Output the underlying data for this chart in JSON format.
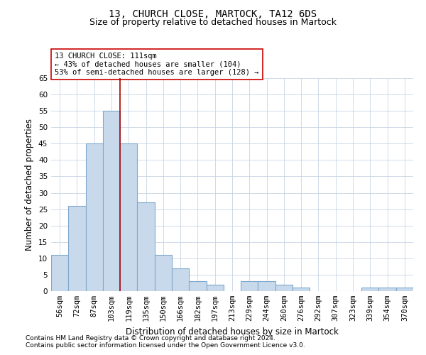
{
  "title1": "13, CHURCH CLOSE, MARTOCK, TA12 6DS",
  "title2": "Size of property relative to detached houses in Martock",
  "xlabel": "Distribution of detached houses by size in Martock",
  "ylabel": "Number of detached properties",
  "categories": [
    "56sqm",
    "72sqm",
    "87sqm",
    "103sqm",
    "119sqm",
    "135sqm",
    "150sqm",
    "166sqm",
    "182sqm",
    "197sqm",
    "213sqm",
    "229sqm",
    "244sqm",
    "260sqm",
    "276sqm",
    "292sqm",
    "307sqm",
    "323sqm",
    "339sqm",
    "354sqm",
    "370sqm"
  ],
  "values": [
    11,
    26,
    45,
    55,
    45,
    27,
    11,
    7,
    3,
    2,
    0,
    3,
    3,
    2,
    1,
    0,
    0,
    0,
    1,
    1,
    1
  ],
  "bar_color": "#c9d9ec",
  "bar_edge_color": "#7fa8cc",
  "ylim": [
    0,
    65
  ],
  "yticks": [
    0,
    5,
    10,
    15,
    20,
    25,
    30,
    35,
    40,
    45,
    50,
    55,
    60,
    65
  ],
  "vline_x": 3.5,
  "vline_color": "#aa0000",
  "annotation_box_text": "13 CHURCH CLOSE: 111sqm\n← 43% of detached houses are smaller (104)\n53% of semi-detached houses are larger (128) →",
  "footnote1": "Contains HM Land Registry data © Crown copyright and database right 2024.",
  "footnote2": "Contains public sector information licensed under the Open Government Licence v3.0.",
  "background_color": "#ffffff",
  "grid_color": "#c8d4e4",
  "title1_fontsize": 10,
  "title2_fontsize": 9,
  "xlabel_fontsize": 8.5,
  "ylabel_fontsize": 8.5,
  "tick_fontsize": 7.5,
  "annot_fontsize": 7.5,
  "footnote_fontsize": 6.5
}
